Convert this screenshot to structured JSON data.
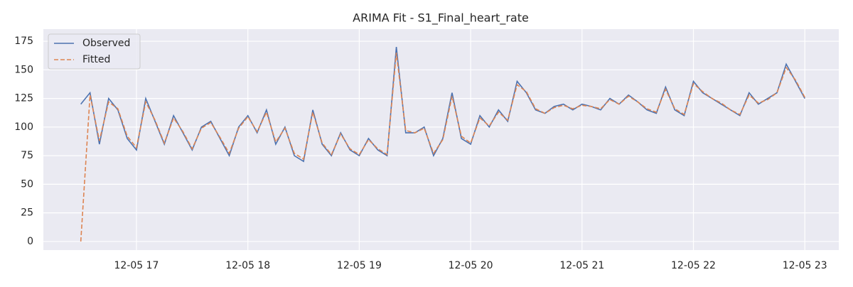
{
  "chart_data": {
    "type": "line",
    "title": "ARIMA Fit - S1_Final_heart_rate",
    "x": [
      16.5,
      16.583,
      16.667,
      16.75,
      16.833,
      16.917,
      17,
      17.083,
      17.167,
      17.25,
      17.333,
      17.417,
      17.5,
      17.583,
      17.667,
      17.75,
      17.833,
      17.917,
      18,
      18.083,
      18.167,
      18.25,
      18.333,
      18.417,
      18.5,
      18.583,
      18.667,
      18.75,
      18.833,
      18.917,
      19,
      19.083,
      19.167,
      19.25,
      19.333,
      19.417,
      19.5,
      19.583,
      19.667,
      19.75,
      19.833,
      19.917,
      20,
      20.083,
      20.167,
      20.25,
      20.333,
      20.417,
      20.5,
      20.583,
      20.667,
      20.75,
      20.833,
      20.917,
      21,
      21.083,
      21.167,
      21.25,
      21.333,
      21.417,
      21.5,
      21.583,
      21.667,
      21.75,
      21.833,
      21.917,
      22,
      22.083,
      22.167,
      22.25,
      22.333,
      22.417,
      22.5,
      22.583,
      22.667,
      22.75,
      22.833,
      22.917,
      23
    ],
    "series": [
      {
        "name": "Observed",
        "color": "#4c72b0",
        "dash": false,
        "values": [
          120,
          130,
          85,
          125,
          115,
          90,
          80,
          125,
          105,
          85,
          110,
          95,
          80,
          100,
          105,
          90,
          75,
          100,
          110,
          95,
          115,
          85,
          100,
          75,
          70,
          115,
          85,
          75,
          95,
          80,
          75,
          90,
          80,
          75,
          170,
          95,
          95,
          100,
          75,
          90,
          130,
          90,
          85,
          110,
          100,
          115,
          105,
          140,
          130,
          115,
          112,
          118,
          120,
          115,
          120,
          118,
          115,
          125,
          120,
          128,
          122,
          115,
          112,
          135,
          115,
          110,
          140,
          130,
          125,
          120,
          115,
          110,
          130,
          120,
          125,
          130,
          155,
          140,
          125
        ]
      },
      {
        "name": "Fitted",
        "color": "#dd8452",
        "dash": true,
        "values": [
          0,
          128,
          88,
          122,
          116,
          92,
          82,
          122,
          106,
          86,
          108,
          96,
          81,
          99,
          104,
          91,
          77,
          99,
          109,
          96,
          113,
          87,
          99,
          77,
          72,
          113,
          86,
          76,
          94,
          81,
          76,
          89,
          81,
          76,
          165,
          97,
          95,
          99,
          77,
          89,
          127,
          92,
          86,
          108,
          101,
          113,
          106,
          137,
          131,
          116,
          112,
          117,
          119,
          116,
          119,
          118,
          116,
          124,
          120,
          127,
          122,
          116,
          113,
          133,
          116,
          111,
          138,
          131,
          125,
          121,
          115,
          111,
          128,
          121,
          124,
          130,
          152,
          141,
          126
        ]
      }
    ],
    "xlim": [
      16.164,
      23.305
    ],
    "xticks": [
      {
        "value": 17,
        "label": "12-05 17"
      },
      {
        "value": 18,
        "label": "12-05 18"
      },
      {
        "value": 19,
        "label": "12-05 19"
      },
      {
        "value": 20,
        "label": "12-05 20"
      },
      {
        "value": 21,
        "label": "12-05 21"
      },
      {
        "value": 22,
        "label": "12-05 22"
      },
      {
        "value": 23,
        "label": "12-05 23"
      }
    ],
    "ylim": [
      -7.5,
      185.6
    ],
    "yticks": [
      0,
      25,
      50,
      75,
      100,
      125,
      150,
      175
    ],
    "grid": true,
    "legend": "upper left"
  }
}
